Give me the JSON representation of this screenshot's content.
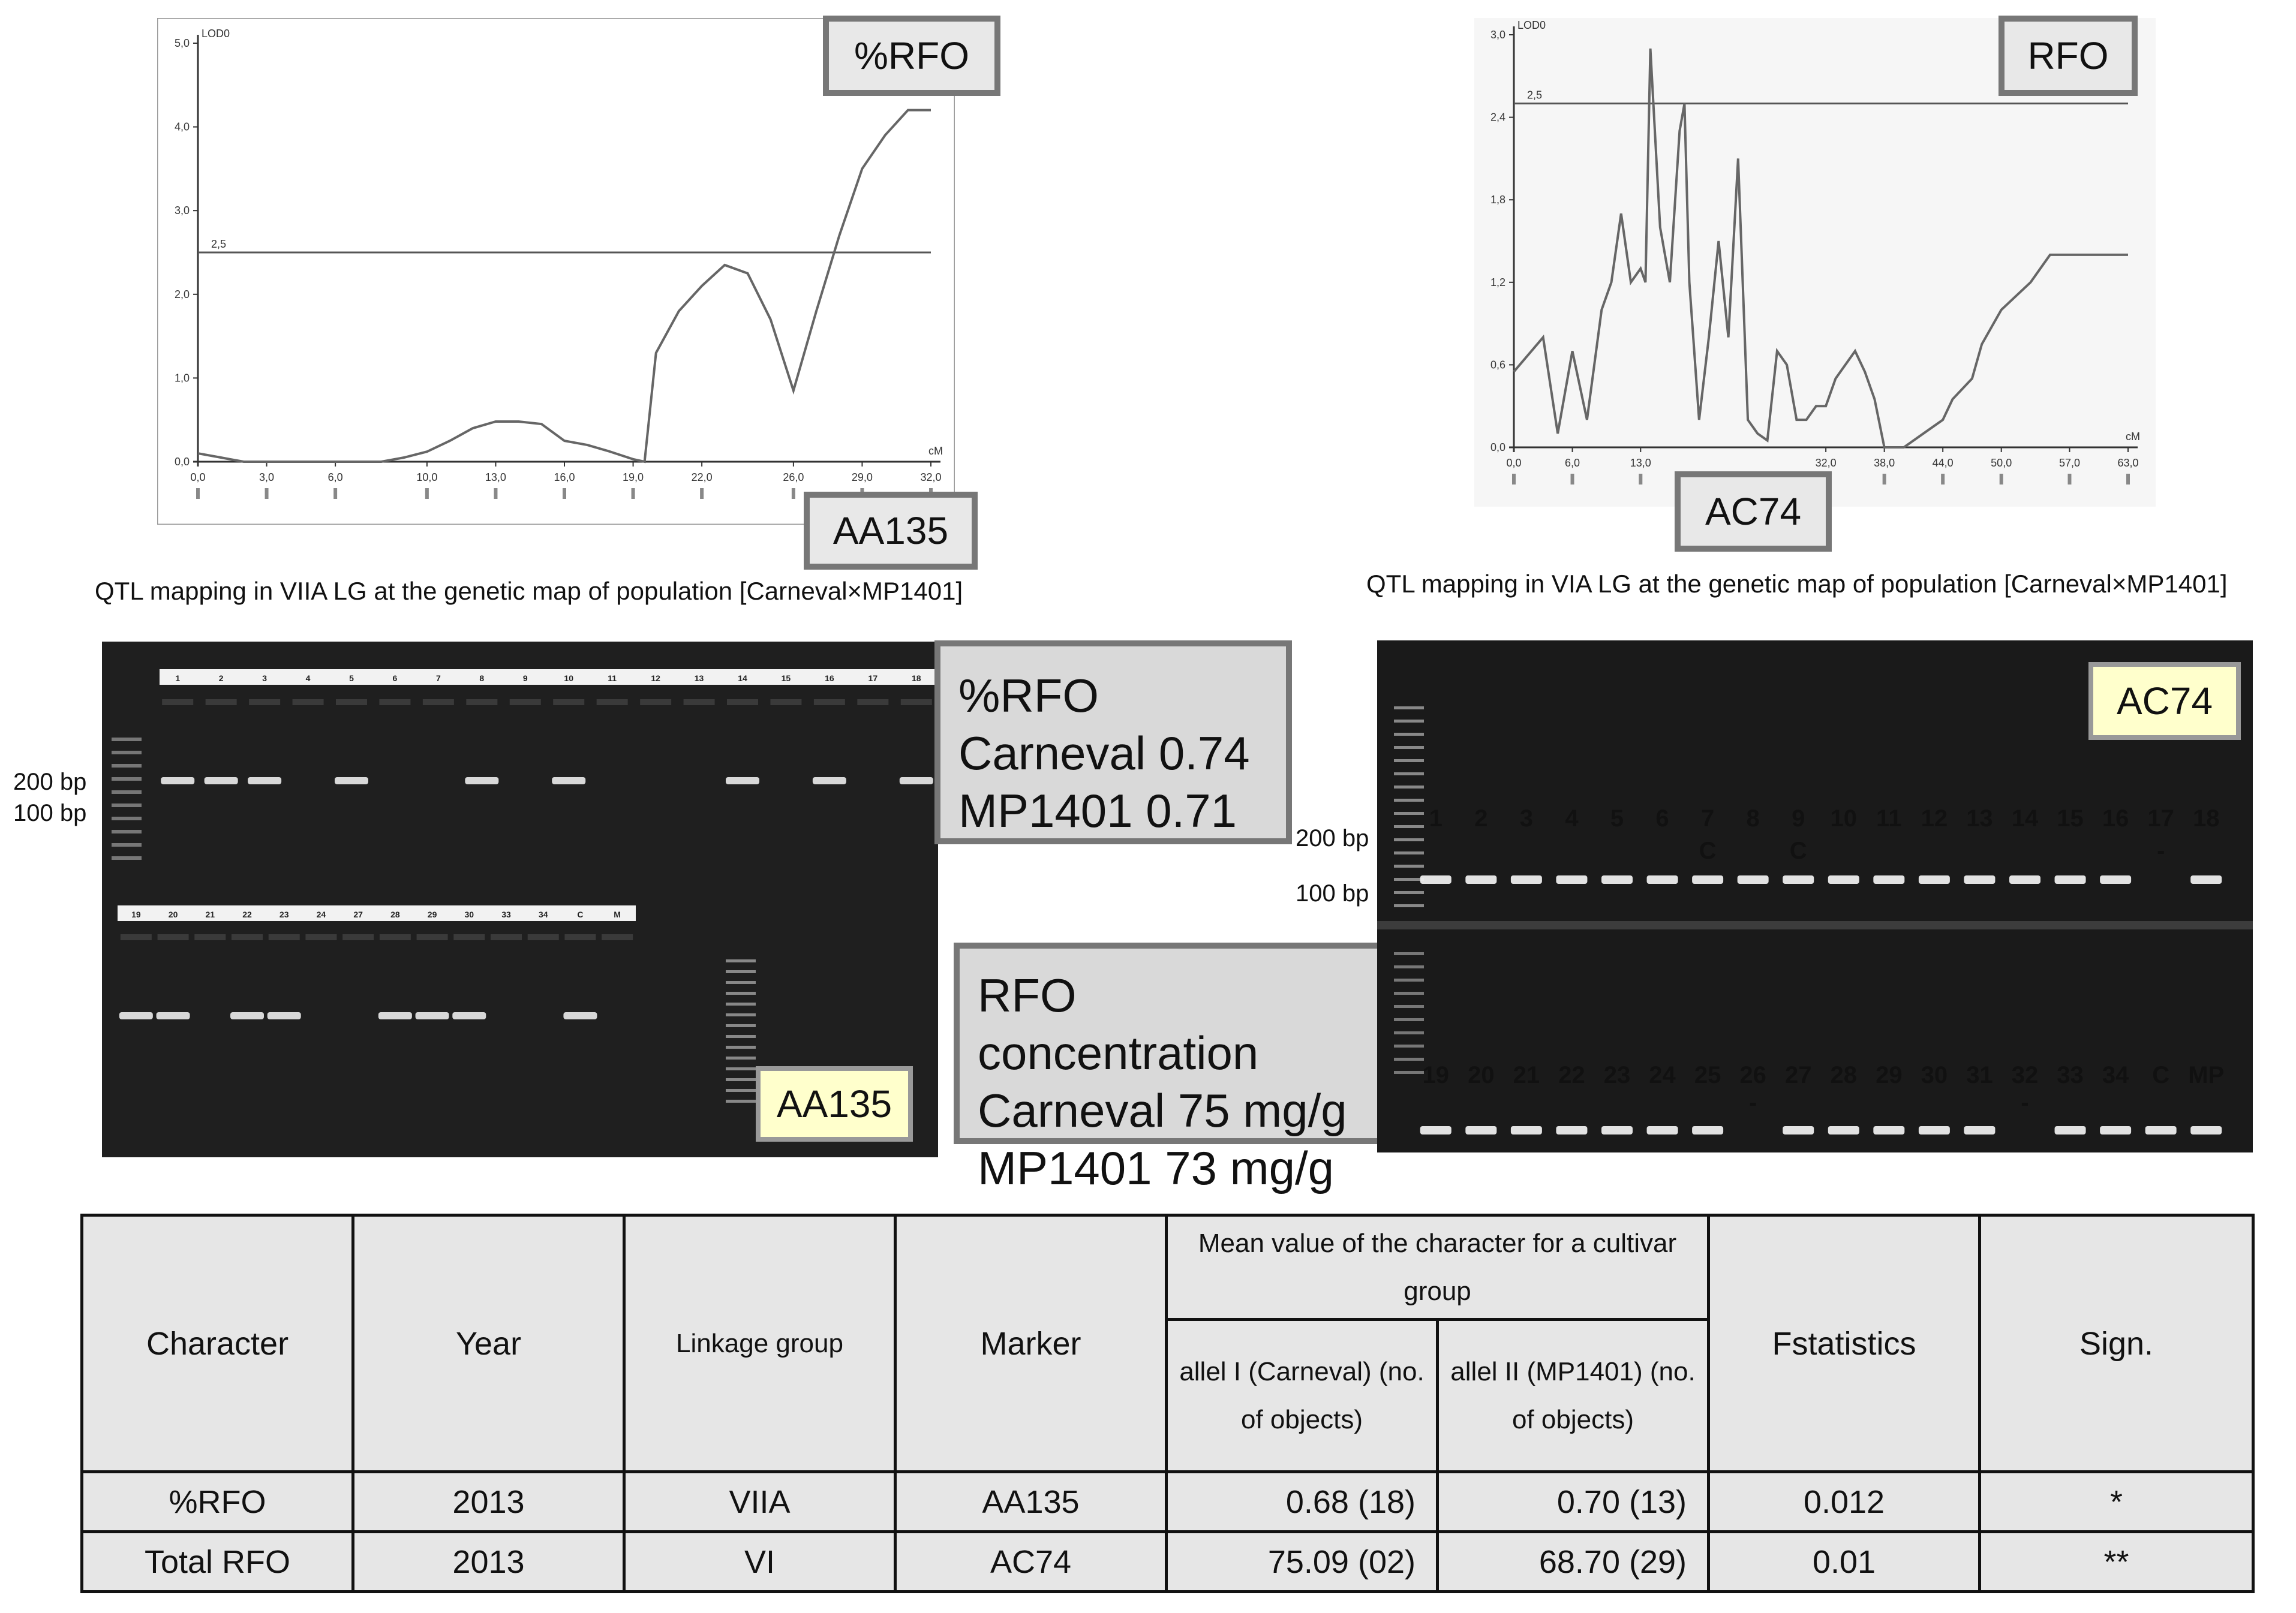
{
  "chart_left": {
    "type": "line",
    "ylabel": "LOD0",
    "xlabel": "cM",
    "threshold": 2.5,
    "y_ticks": [
      "0,0",
      "1,0",
      "2,0",
      "3,0",
      "4,0",
      "5,0"
    ],
    "x_ticks": [
      "0,0",
      "3,0",
      "6,0",
      "10,0",
      "13,0",
      "16,0",
      "19,0",
      "22,0",
      "26,0",
      "29,0",
      "32,0"
    ],
    "threshold_label": "2,5",
    "x": [
      0,
      1,
      2,
      3,
      4,
      6,
      8,
      9,
      10,
      11,
      12,
      13,
      14,
      15,
      16,
      17,
      18,
      19,
      19.5,
      20,
      21,
      22,
      23,
      24,
      25,
      26,
      27,
      28,
      29,
      30,
      31,
      32
    ],
    "y": [
      0.1,
      0.05,
      0,
      0,
      0,
      0,
      0,
      0.05,
      0.12,
      0.25,
      0.4,
      0.48,
      0.48,
      0.45,
      0.25,
      0.2,
      0.12,
      0.03,
      0,
      1.3,
      1.8,
      2.1,
      2.35,
      2.25,
      1.7,
      0.85,
      1.8,
      2.7,
      3.5,
      3.9,
      4.2,
      4.2
    ],
    "xlim": [
      0,
      32
    ],
    "ylim": [
      0,
      5
    ],
    "tag": "%RFO",
    "marker": "AA135"
  },
  "chart_right": {
    "type": "line",
    "ylabel": "LOD0",
    "xlabel": "cM",
    "threshold": 2.5,
    "y_ticks": [
      "0,0",
      "0,6",
      "1,2",
      "1,8",
      "2,4",
      "3,0"
    ],
    "x_ticks": [
      "0,0",
      "6,0",
      "13,0",
      "32,0",
      "38,0",
      "44,0",
      "50,0",
      "57,0",
      "63,0"
    ],
    "threshold_label": "2,5",
    "x": [
      0,
      3,
      4.5,
      6,
      7.5,
      9,
      10,
      11,
      12,
      13,
      13.5,
      14,
      15,
      16,
      17,
      17.5,
      18,
      19,
      20,
      21,
      22,
      23,
      24,
      25,
      26,
      27,
      28,
      29,
      30,
      31,
      32,
      33,
      35,
      36,
      37,
      38,
      40,
      42,
      44,
      45,
      47,
      48,
      50,
      53,
      55,
      57,
      60,
      63
    ],
    "y": [
      0.55,
      0.8,
      0.1,
      0.7,
      0.2,
      1.0,
      1.2,
      1.7,
      1.2,
      1.3,
      1.2,
      2.9,
      1.6,
      1.2,
      2.3,
      2.5,
      1.2,
      0.2,
      0.8,
      1.5,
      0.8,
      2.1,
      0.2,
      0.1,
      0.05,
      0.7,
      0.6,
      0.2,
      0.2,
      0.3,
      0.3,
      0.5,
      0.7,
      0.55,
      0.35,
      0,
      0,
      0.1,
      0.2,
      0.35,
      0.5,
      0.75,
      1.0,
      1.2,
      1.4,
      1.4,
      1.4,
      1.4
    ],
    "xlim": [
      0,
      63
    ],
    "ylim": [
      0,
      3
    ],
    "tag": "RFO",
    "marker": "AC74"
  },
  "captions": {
    "left": "QTL  mapping  in VIIA LG at the genetic  map of population  [Carneval×MP1401]",
    "right": "QTL  mapping  in VIA LG at the genetic  map of population  [Carneval×MP1401]"
  },
  "gel_left": {
    "bp_200": "200 bp",
    "bp_100": "100 bp",
    "top_lanes": [
      "1",
      "2",
      "3",
      "4",
      "5",
      "6",
      "7",
      "8",
      "9",
      "10",
      "11",
      "12",
      "13",
      "14",
      "15",
      "16",
      "17",
      "18"
    ],
    "bottom_lanes": [
      "19",
      "20",
      "21",
      "22",
      "23",
      "24",
      "27",
      "28",
      "29",
      "30",
      "33",
      "34",
      "C",
      "M"
    ],
    "marker_tag": "AA135"
  },
  "gel_right": {
    "bp_200": "200 bp",
    "bp_100": "100 bp",
    "top_lanes": [
      "1",
      "2",
      "3",
      "4",
      "5",
      "6",
      "7",
      "8",
      "9",
      "10",
      "11",
      "12",
      "13",
      "14",
      "15",
      "16",
      "17",
      "18"
    ],
    "top_sub": {
      "7": "C",
      "9": "C",
      "17": "-"
    },
    "bottom_lanes": [
      "19",
      "20",
      "21",
      "22",
      "23",
      "24",
      "25",
      "26",
      "27",
      "28",
      "29",
      "30",
      "31",
      "32",
      "33",
      "34",
      "C",
      "MP"
    ],
    "bottom_sub": {
      "26": "-",
      "32": "-"
    },
    "marker_tag": "AC74"
  },
  "box_rfo_pct": {
    "line1": "%RFO",
    "line2": "Carneval  0.74",
    "line3": "MP1401   0.71"
  },
  "box_rfo_conc": {
    "line1": "RFO concentration",
    "line2": "Carneval  75 mg/g",
    "line3": "MP1401   73 mg/g"
  },
  "table": {
    "headers": {
      "character": "Character",
      "year": "Year",
      "linkage": "Linkage  group",
      "marker": "Marker",
      "mean": "Mean value  of the character  for  a cultivar group",
      "allele1": "allel I (Carneval) (no.  of objects)",
      "allele2": "allel II (MP1401) (no.  of objects)",
      "fstat": "Fstatistics",
      "sign": "Sign."
    },
    "rows": [
      {
        "character": "%RFO",
        "year": "2013",
        "linkage": "VIIA",
        "marker": "AA135",
        "allele1": "0.68 (18)",
        "allele2": "0.70 (13)",
        "fstat": "0.012",
        "sign": "*"
      },
      {
        "character": "Total  RFO",
        "year": "2013",
        "linkage": "VI",
        "marker": "AC74",
        "allele1": "75.09 (02)",
        "allele2": "68.70 (29)",
        "fstat": "0.01",
        "sign": "**"
      }
    ]
  }
}
